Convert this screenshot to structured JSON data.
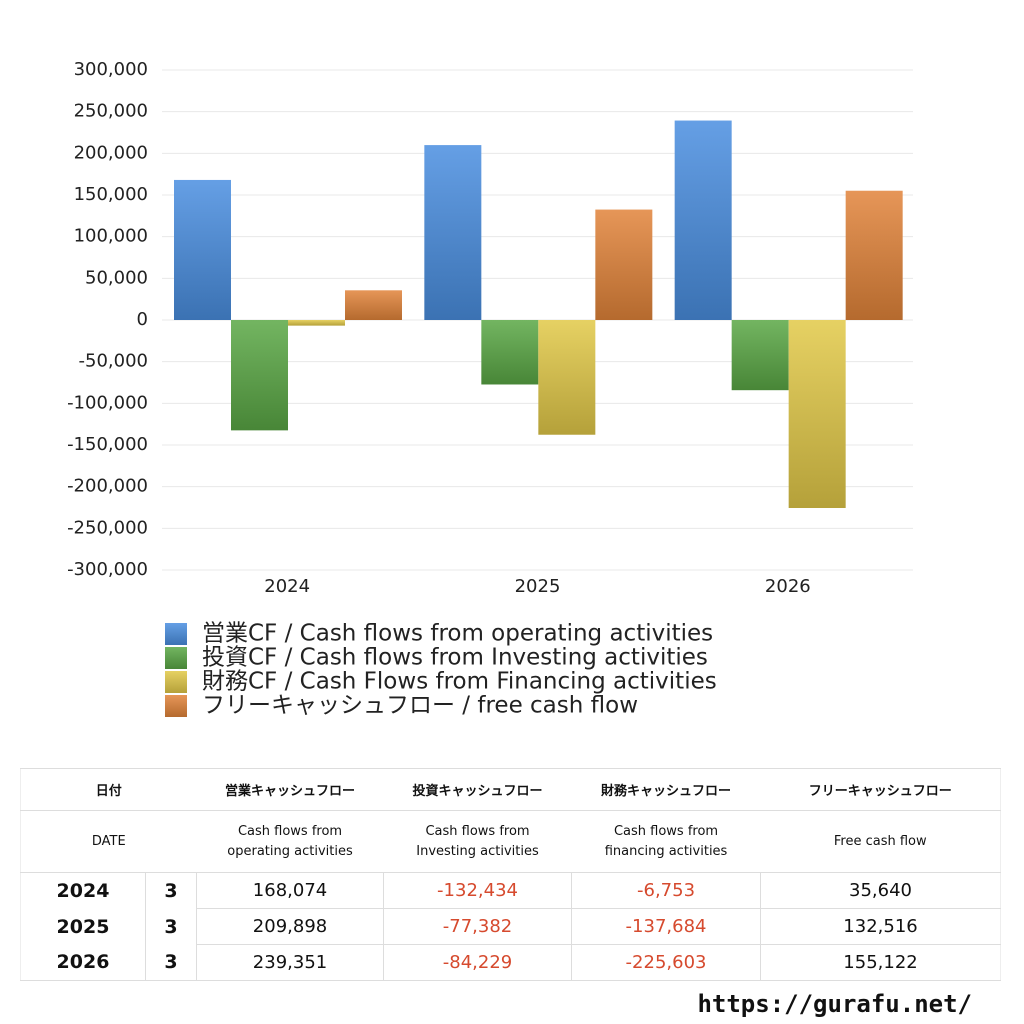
{
  "chart_data": {
    "type": "bar",
    "categories": [
      "2024",
      "2025",
      "2026"
    ],
    "series": [
      {
        "name": "営業CF / Cash flows from operating activities",
        "color": "#4a8ee0",
        "values": [
          168074,
          209898,
          239351
        ]
      },
      {
        "name": "投資CF / Cash flows from Investing activities",
        "color": "#5aa845",
        "values": [
          -132434,
          -77382,
          -84229
        ]
      },
      {
        "name": "財務CF / Cash Flows from Financing activities",
        "color": "#e2c948",
        "values": [
          -6753,
          -137684,
          -225603
        ]
      },
      {
        "name": "フリーキャッシュフロー / free cash flow",
        "color": "#e2843a",
        "values": [
          35640,
          132516,
          155122
        ]
      }
    ],
    "ylim": [
      -300000,
      300000
    ],
    "yticks": [
      {
        "value": -300000,
        "label": "-300,000"
      },
      {
        "value": -250000,
        "label": "-250,000"
      },
      {
        "value": -200000,
        "label": "-200,000"
      },
      {
        "value": -150000,
        "label": "-150,000"
      },
      {
        "value": -100000,
        "label": "-100,000"
      },
      {
        "value": -50000,
        "label": "-50,000"
      },
      0,
      {
        "value": 50000,
        "label": "50,000"
      },
      {
        "value": 100000,
        "label": "100,000"
      },
      {
        "value": 150000,
        "label": "150,000"
      },
      {
        "value": 200000,
        "label": "200,000"
      },
      {
        "value": 250000,
        "label": "250,000"
      },
      {
        "value": 300000,
        "label": "300,000"
      }
    ],
    "grid": true
  },
  "table": {
    "header": [
      [
        "日付",
        "営業キャッシュフロー",
        "投資キャッシュフロー",
        "財務キャッシュフロー",
        "フリーキャッシュフロー"
      ],
      [
        "DATE",
        "Cash flows from operating activities",
        "Cash flows from Investing activities",
        "Cash flows from financing activities",
        "Free cash flow"
      ]
    ],
    "rows": [
      [
        "2024",
        "3",
        "168,074",
        "-132,434",
        "-6,753",
        "35,640"
      ],
      [
        "2025",
        "3",
        "209,898",
        "-77,382",
        "-137,684",
        "132,516"
      ],
      [
        "2026",
        "3",
        "239,351",
        "-84,229",
        "-225,603",
        "155,122"
      ]
    ],
    "negative_color": "#d64a2e"
  },
  "footer": "https://gurafu.net/"
}
